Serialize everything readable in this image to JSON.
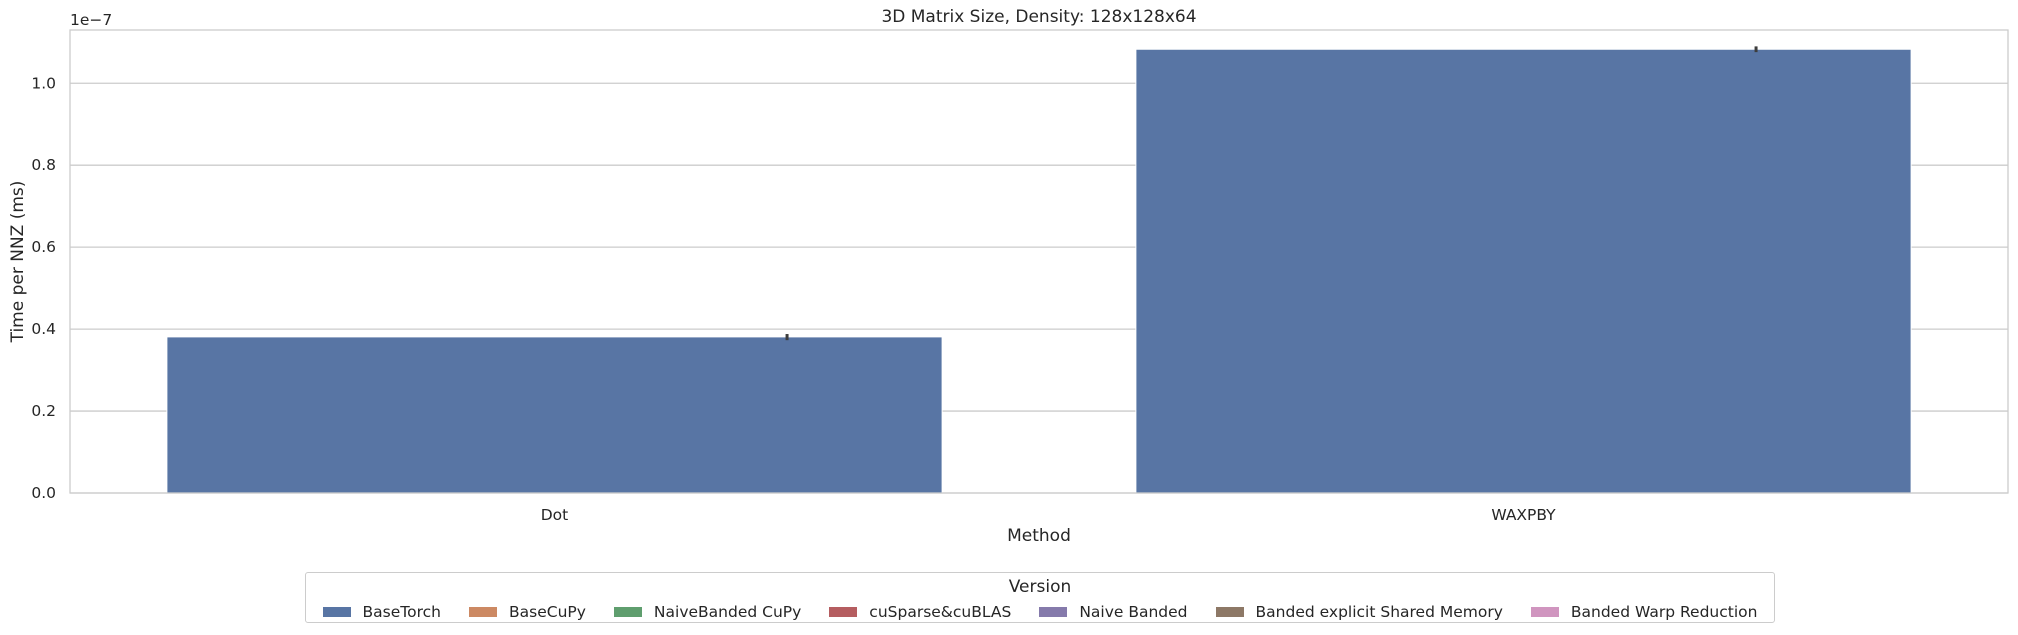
{
  "chart_data": {
    "type": "bar",
    "title": "3D Matrix Size, Density: 128x128x64",
    "xlabel": "Method",
    "ylabel": "Time per NNZ (ms)",
    "y_offset_label": "1e−7",
    "categories": [
      "Dot",
      "WAXPBY"
    ],
    "ylim": [
      0,
      1.13
    ],
    "y_ticks": [
      0.0,
      0.2,
      0.4,
      0.6,
      0.8,
      1.0
    ],
    "y_tick_labels": [
      "0.0",
      "0.2",
      "0.4",
      "0.6",
      "0.8",
      "1.0"
    ],
    "grid": true,
    "series": [
      {
        "name": "BaseTorch",
        "color": "#5875a4",
        "values": [
          0.381,
          1.083
        ],
        "err_low": [
          0.373,
          1.076
        ],
        "err_high": [
          0.388,
          1.09
        ]
      },
      {
        "name": "BaseCuPy",
        "color": "#cc8963",
        "values": [
          null,
          null
        ]
      },
      {
        "name": "NaiveBanded CuPy",
        "color": "#5f9e6e",
        "values": [
          null,
          null
        ]
      },
      {
        "name": "cuSparse&cuBLAS",
        "color": "#b55d60",
        "values": [
          null,
          null
        ]
      },
      {
        "name": "Naive Banded",
        "color": "#857aab",
        "values": [
          null,
          null
        ]
      },
      {
        "name": "Banded explicit Shared Memory",
        "color": "#8d7866",
        "values": [
          null,
          null
        ]
      },
      {
        "name": "Banded Warp Reduction",
        "color": "#d095bf",
        "values": [
          null,
          null
        ]
      }
    ],
    "legend_title": "Version",
    "legend_position": "bottom-center"
  }
}
